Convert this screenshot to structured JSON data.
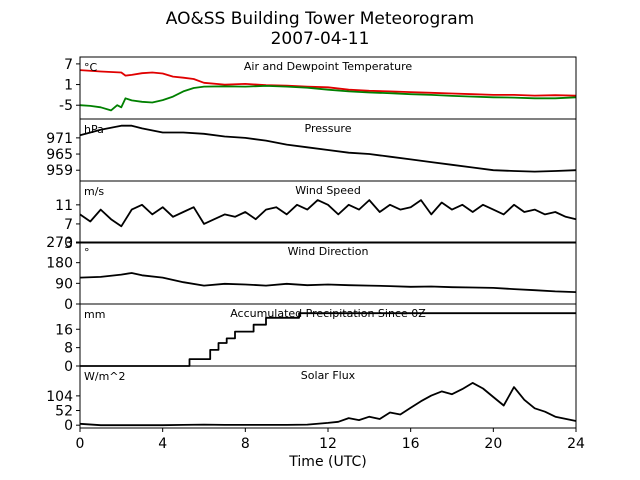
{
  "title_line1": "AO&SS Building Tower Meteorogram",
  "title_line2": "2007-04-11",
  "xlabel": "Time (UTC)",
  "x_ticks": [
    "0",
    "4",
    "8",
    "12",
    "16",
    "20",
    "24"
  ],
  "chart_data": [
    {
      "type": "line",
      "title": "Air and Dewpoint Temperature",
      "unit": "°C",
      "xlim": [
        0,
        24
      ],
      "ylim": [
        -9,
        9
      ],
      "yticks": [
        -5,
        1,
        7
      ],
      "series": [
        {
          "color": "#e00000",
          "points": [
            [
              0,
              5.2
            ],
            [
              1,
              4.8
            ],
            [
              2,
              4.5
            ],
            [
              2.2,
              3.6
            ],
            [
              2.5,
              3.8
            ],
            [
              3,
              4.3
            ],
            [
              3.5,
              4.5
            ],
            [
              4,
              4.2
            ],
            [
              4.5,
              3.3
            ],
            [
              5,
              3.0
            ],
            [
              5.5,
              2.6
            ],
            [
              6,
              1.5
            ],
            [
              7,
              1.0
            ],
            [
              8,
              1.2
            ],
            [
              9,
              0.8
            ],
            [
              10,
              0.7
            ],
            [
              11,
              0.4
            ],
            [
              12,
              0.2
            ],
            [
              13,
              -0.5
            ],
            [
              14,
              -0.8
            ],
            [
              15,
              -1.0
            ],
            [
              16,
              -1.2
            ],
            [
              17,
              -1.4
            ],
            [
              18,
              -1.6
            ],
            [
              19,
              -1.8
            ],
            [
              20,
              -2.0
            ],
            [
              21,
              -2.0
            ],
            [
              22,
              -2.2
            ],
            [
              23,
              -2.1
            ],
            [
              24,
              -2.2
            ]
          ]
        },
        {
          "color": "#008000",
          "points": [
            [
              0,
              -5.0
            ],
            [
              0.5,
              -5.2
            ],
            [
              1,
              -5.6
            ],
            [
              1.5,
              -6.5
            ],
            [
              1.8,
              -5.0
            ],
            [
              2,
              -5.6
            ],
            [
              2.2,
              -3.0
            ],
            [
              2.5,
              -3.6
            ],
            [
              3,
              -4.0
            ],
            [
              3.5,
              -4.2
            ],
            [
              4,
              -3.5
            ],
            [
              4.5,
              -2.5
            ],
            [
              5,
              -1.0
            ],
            [
              5.5,
              0.0
            ],
            [
              6,
              0.4
            ],
            [
              7,
              0.5
            ],
            [
              8,
              0.4
            ],
            [
              9,
              0.6
            ],
            [
              10,
              0.4
            ],
            [
              11,
              0.1
            ],
            [
              12,
              -0.5
            ],
            [
              13,
              -1.0
            ],
            [
              14,
              -1.3
            ],
            [
              15,
              -1.5
            ],
            [
              16,
              -1.8
            ],
            [
              17,
              -2.0
            ],
            [
              18,
              -2.3
            ],
            [
              19,
              -2.5
            ],
            [
              20,
              -2.7
            ],
            [
              21,
              -2.8
            ],
            [
              22,
              -3.0
            ],
            [
              23,
              -3.0
            ],
            [
              24,
              -2.7
            ]
          ]
        }
      ]
    },
    {
      "type": "line",
      "title": "Pressure",
      "unit": "hPa",
      "xlim": [
        0,
        24
      ],
      "ylim": [
        955,
        978
      ],
      "yticks": [
        959,
        965,
        971
      ],
      "series": [
        {
          "color": "#000000",
          "points": [
            [
              0,
              972
            ],
            [
              1,
              974
            ],
            [
              2,
              975.5
            ],
            [
              2.5,
              975.5
            ],
            [
              3,
              974.5
            ],
            [
              4,
              973
            ],
            [
              5,
              973
            ],
            [
              6,
              972.5
            ],
            [
              7,
              971.5
            ],
            [
              8,
              971
            ],
            [
              9,
              970
            ],
            [
              10,
              968.5
            ],
            [
              11,
              967.5
            ],
            [
              12,
              966.5
            ],
            [
              13,
              965.5
            ],
            [
              14,
              965
            ],
            [
              15,
              964
            ],
            [
              16,
              963
            ],
            [
              17,
              962
            ],
            [
              18,
              961
            ],
            [
              19,
              960
            ],
            [
              20,
              959
            ],
            [
              21,
              958.7
            ],
            [
              22,
              958.5
            ],
            [
              23,
              958.7
            ],
            [
              24,
              959
            ]
          ]
        }
      ]
    },
    {
      "type": "line",
      "title": "Wind Speed",
      "unit": "m/s",
      "xlim": [
        0,
        24
      ],
      "ylim": [
        3,
        16
      ],
      "yticks": [
        3,
        7,
        11
      ],
      "series": [
        {
          "color": "#000000",
          "points": [
            [
              0,
              9
            ],
            [
              0.5,
              7.5
            ],
            [
              1,
              10
            ],
            [
              1.5,
              8
            ],
            [
              2,
              6.5
            ],
            [
              2.5,
              10
            ],
            [
              3,
              11
            ],
            [
              3.5,
              9
            ],
            [
              4,
              10.5
            ],
            [
              4.5,
              8.5
            ],
            [
              5,
              9.5
            ],
            [
              5.5,
              10.5
            ],
            [
              6,
              7
            ],
            [
              6.5,
              8
            ],
            [
              7,
              9
            ],
            [
              7.5,
              8.5
            ],
            [
              8,
              9.5
            ],
            [
              8.5,
              8
            ],
            [
              9,
              10
            ],
            [
              9.5,
              10.5
            ],
            [
              10,
              9
            ],
            [
              10.5,
              11
            ],
            [
              11,
              10
            ],
            [
              11.5,
              12
            ],
            [
              12,
              11
            ],
            [
              12.5,
              9
            ],
            [
              13,
              11
            ],
            [
              13.5,
              10
            ],
            [
              14,
              12
            ],
            [
              14.5,
              9.5
            ],
            [
              15,
              11
            ],
            [
              15.5,
              10
            ],
            [
              16,
              10.5
            ],
            [
              16.5,
              12
            ],
            [
              17,
              9
            ],
            [
              17.5,
              11.5
            ],
            [
              18,
              10
            ],
            [
              18.5,
              11
            ],
            [
              19,
              9.5
            ],
            [
              19.5,
              11
            ],
            [
              20,
              10
            ],
            [
              20.5,
              9
            ],
            [
              21,
              11
            ],
            [
              21.5,
              9.5
            ],
            [
              22,
              10
            ],
            [
              22.5,
              9
            ],
            [
              23,
              9.5
            ],
            [
              23.5,
              8.5
            ],
            [
              24,
              8
            ]
          ]
        }
      ]
    },
    {
      "type": "line",
      "title": "Wind Direction",
      "unit": "°",
      "xlim": [
        0,
        24
      ],
      "ylim": [
        0,
        270
      ],
      "yticks": [
        0,
        90,
        180,
        270
      ],
      "series": [
        {
          "color": "#000000",
          "points": [
            [
              0,
              115
            ],
            [
              1,
              118
            ],
            [
              2,
              128
            ],
            [
              2.5,
              135
            ],
            [
              3,
              125
            ],
            [
              4,
              115
            ],
            [
              5,
              95
            ],
            [
              6,
              80
            ],
            [
              7,
              88
            ],
            [
              8,
              85
            ],
            [
              9,
              80
            ],
            [
              10,
              88
            ],
            [
              11,
              82
            ],
            [
              12,
              85
            ],
            [
              13,
              82
            ],
            [
              14,
              80
            ],
            [
              15,
              78
            ],
            [
              16,
              75
            ],
            [
              17,
              76
            ],
            [
              18,
              73
            ],
            [
              19,
              72
            ],
            [
              20,
              70
            ],
            [
              21,
              65
            ],
            [
              22,
              60
            ],
            [
              23,
              55
            ],
            [
              24,
              52
            ]
          ]
        }
      ]
    },
    {
      "type": "line",
      "title": "Accumulated Precipitation Since 0Z",
      "unit": "mm",
      "xlim": [
        0,
        24
      ],
      "ylim": [
        0,
        27
      ],
      "yticks": [
        0,
        8,
        16
      ],
      "series": [
        {
          "color": "#000000",
          "points": [
            [
              0,
              0
            ],
            [
              5.3,
              0
            ],
            [
              5.3,
              3
            ],
            [
              6.3,
              3
            ],
            [
              6.3,
              7
            ],
            [
              6.7,
              7
            ],
            [
              6.7,
              10
            ],
            [
              7.1,
              10
            ],
            [
              7.1,
              12
            ],
            [
              7.5,
              12
            ],
            [
              7.5,
              15
            ],
            [
              8.4,
              15
            ],
            [
              8.4,
              18
            ],
            [
              9.0,
              18
            ],
            [
              9.0,
              21
            ],
            [
              10.6,
              21
            ],
            [
              10.6,
              23
            ],
            [
              24,
              23
            ]
          ]
        }
      ]
    },
    {
      "type": "line",
      "title": "Solar Flux",
      "unit": "W/m^2",
      "xlim": [
        0,
        24
      ],
      "ylim": [
        -10,
        210
      ],
      "yticks": [
        0,
        52,
        104
      ],
      "series": [
        {
          "color": "#000000",
          "points": [
            [
              0,
              5
            ],
            [
              1,
              0
            ],
            [
              2,
              0
            ],
            [
              3,
              0
            ],
            [
              4,
              0
            ],
            [
              5,
              1
            ],
            [
              6,
              2
            ],
            [
              7,
              1
            ],
            [
              8,
              1
            ],
            [
              9,
              1
            ],
            [
              10,
              1
            ],
            [
              11,
              2
            ],
            [
              12,
              8
            ],
            [
              12.5,
              12
            ],
            [
              13,
              25
            ],
            [
              13.5,
              18
            ],
            [
              14,
              30
            ],
            [
              14.5,
              22
            ],
            [
              15,
              45
            ],
            [
              15.5,
              38
            ],
            [
              16,
              62
            ],
            [
              16.5,
              85
            ],
            [
              17,
              105
            ],
            [
              17.5,
              120
            ],
            [
              18,
              110
            ],
            [
              18.5,
              128
            ],
            [
              19,
              150
            ],
            [
              19.5,
              130
            ],
            [
              20,
              100
            ],
            [
              20.5,
              70
            ],
            [
              21,
              135
            ],
            [
              21.5,
              90
            ],
            [
              22,
              60
            ],
            [
              22.5,
              48
            ],
            [
              23,
              30
            ],
            [
              24,
              15
            ]
          ]
        }
      ]
    }
  ]
}
